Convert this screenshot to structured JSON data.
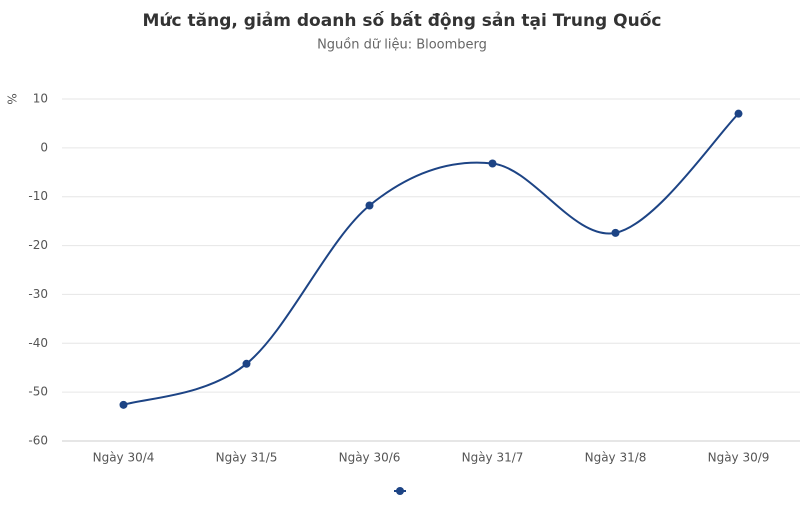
{
  "chart_data": {
    "type": "line",
    "title": "Mức tăng, giảm doanh số bất động sản tại Trung Quốc",
    "subtitle": "Nguồn dữ liệu: Bloomberg",
    "y_label": "%",
    "categories": [
      "Ngày 30/4",
      "Ngày 31/5",
      "Ngày 30/6",
      "Ngày 31/7",
      "Ngày 31/8",
      "Ngày 30/9"
    ],
    "values": [
      -52.6,
      -44.2,
      -11.8,
      -3.2,
      -17.4,
      7
    ],
    "color": "#1d4485",
    "ylim": [
      -60,
      10
    ],
    "yticks": [
      -60,
      -50,
      -40,
      -30,
      -20,
      -10,
      0,
      10
    ],
    "grid": true,
    "legend": "bottom"
  }
}
